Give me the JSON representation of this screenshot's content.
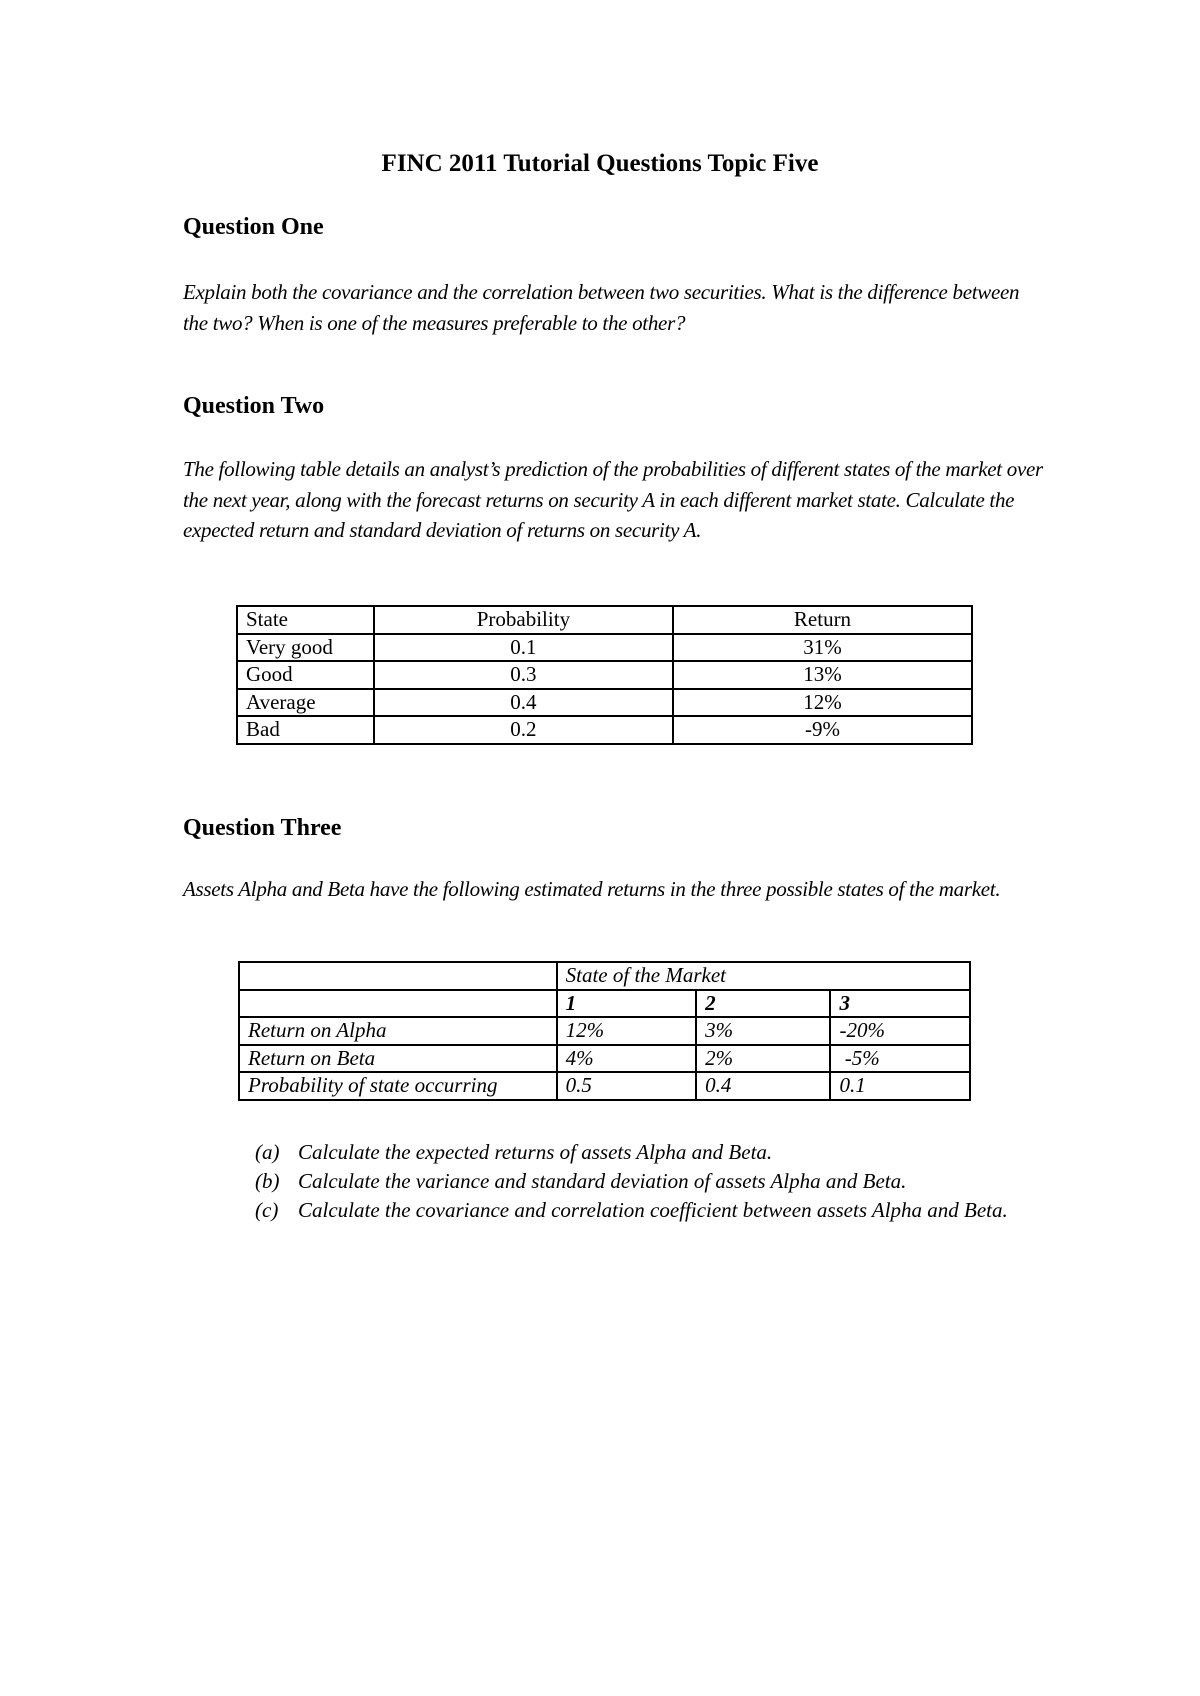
{
  "title": "FINC 2011 Tutorial Questions Topic Five",
  "q1": {
    "heading": "Question One",
    "text": "Explain both the covariance and the correlation between two securities. What is the difference between the two? When is one of the measures preferable to the other?"
  },
  "q2": {
    "heading": "Question Two",
    "text": "The following table details an analyst’s prediction of the probabilities of different states of the market over the next year, along with the forecast returns on security A in each different market state. Calculate the expected return and standard deviation of returns on security A.",
    "table": {
      "headers": [
        "State",
        "Probability",
        "Return"
      ],
      "rows": [
        [
          "Very good",
          "0.1",
          "31%"
        ],
        [
          "Good",
          "0.3",
          "13%"
        ],
        [
          "Average",
          "0.4",
          "12%"
        ],
        [
          "Bad",
          "0.2",
          "-9%"
        ]
      ]
    }
  },
  "q3": {
    "heading": "Question Three",
    "text": "Assets Alpha and Beta have the following estimated returns in the three possible states of the market.",
    "table": {
      "group_header": "State of the Market",
      "states": [
        "1",
        "2",
        "3"
      ],
      "rows": [
        [
          "Return on Alpha",
          "12%",
          "3%",
          "-20%"
        ],
        [
          "Return on Beta",
          "4%",
          "2%",
          " -5%"
        ],
        [
          "Probability of state occurring",
          "0.5",
          "0.4",
          "0.1"
        ]
      ]
    },
    "parts": [
      {
        "label": "(a)",
        "text": "Calculate the expected returns of assets Alpha and Beta."
      },
      {
        "label": "(b)",
        "text": "Calculate the variance and standard deviation of assets Alpha and Beta."
      },
      {
        "label": "(c)",
        "text": "Calculate the covariance and correlation coefficient between assets Alpha and Beta."
      }
    ]
  }
}
